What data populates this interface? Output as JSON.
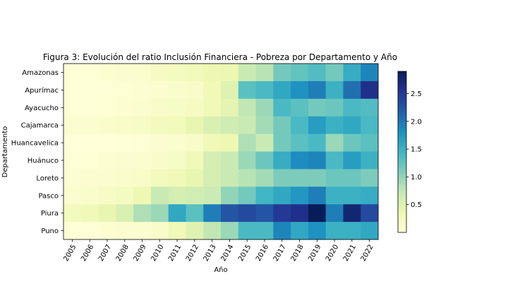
{
  "chart_data": {
    "type": "heatmap",
    "title": "Figura 3: Evolución del ratio Inclusión Financiera - Pobreza por Departamento y Año",
    "xlabel": "Año",
    "ylabel": "Departamento",
    "x": [
      "2005",
      "2006",
      "2007",
      "2008",
      "2009",
      "2010",
      "2011",
      "2012",
      "2013",
      "2014",
      "2015",
      "2016",
      "2017",
      "2018",
      "2019",
      "2020",
      "2021",
      "2022"
    ],
    "y": [
      "Amazonas",
      "Apurímac",
      "Ayacucho",
      "Cajamarca",
      "Huancavelica",
      "Huánuco",
      "Loreto",
      "Pasco",
      "Piura",
      "Puno"
    ],
    "values": [
      [
        0.02,
        0.03,
        0.06,
        0.08,
        0.1,
        0.2,
        0.23,
        0.28,
        0.35,
        0.37,
        0.7,
        0.8,
        1.15,
        1.25,
        1.35,
        1.15,
        1.55,
        1.9
      ],
      [
        0.02,
        0.03,
        0.04,
        0.05,
        0.06,
        0.09,
        0.12,
        0.15,
        0.3,
        0.5,
        1.3,
        1.4,
        1.6,
        1.8,
        1.95,
        1.5,
        2.05,
        2.6
      ],
      [
        0.03,
        0.04,
        0.05,
        0.07,
        0.1,
        0.15,
        0.18,
        0.2,
        0.3,
        0.45,
        0.75,
        0.95,
        1.4,
        1.3,
        1.15,
        1.2,
        1.4,
        1.35
      ],
      [
        0.08,
        0.1,
        0.12,
        0.15,
        0.18,
        0.25,
        0.28,
        0.4,
        0.55,
        0.65,
        0.7,
        0.9,
        1.15,
        1.4,
        1.7,
        1.5,
        1.6,
        1.4
      ],
      [
        0.01,
        0.01,
        0.01,
        0.02,
        0.03,
        0.08,
        0.1,
        0.15,
        0.3,
        0.35,
        0.85,
        0.7,
        1.15,
        1.3,
        1.4,
        0.95,
        1.2,
        1.3
      ],
      [
        0.04,
        0.05,
        0.06,
        0.08,
        0.1,
        0.15,
        0.18,
        0.3,
        0.6,
        0.7,
        0.95,
        1.2,
        1.55,
        1.85,
        1.9,
        1.4,
        1.7,
        1.5
      ],
      [
        0.06,
        0.08,
        0.1,
        0.12,
        0.15,
        0.25,
        0.3,
        0.4,
        0.6,
        0.7,
        0.8,
        0.9,
        1.1,
        1.1,
        1.1,
        1.2,
        1.2,
        1.1
      ],
      [
        0.1,
        0.13,
        0.18,
        0.22,
        0.35,
        0.7,
        0.6,
        0.62,
        0.68,
        1.0,
        1.15,
        1.45,
        1.6,
        1.75,
        1.95,
        1.5,
        1.5,
        1.55
      ],
      [
        0.25,
        0.3,
        0.4,
        0.55,
        0.85,
        0.95,
        1.6,
        1.3,
        1.95,
        2.25,
        2.35,
        2.25,
        2.5,
        2.6,
        2.9,
        1.95,
        2.75,
        2.35
      ],
      [
        0.03,
        0.04,
        0.06,
        0.08,
        0.1,
        0.15,
        0.3,
        0.5,
        0.75,
        0.95,
        1.4,
        1.4,
        1.9,
        1.6,
        1.8,
        1.5,
        1.5,
        1.6
      ]
    ],
    "colorbar": {
      "ticks": [
        0.5,
        1.0,
        1.5,
        2.0,
        2.5
      ],
      "tick_labels": [
        "0.5",
        "1.0",
        "1.5",
        "2.0",
        "2.5"
      ],
      "min": 0.0,
      "max": 2.9
    },
    "colormap": "YlGnBu",
    "grid": false
  }
}
